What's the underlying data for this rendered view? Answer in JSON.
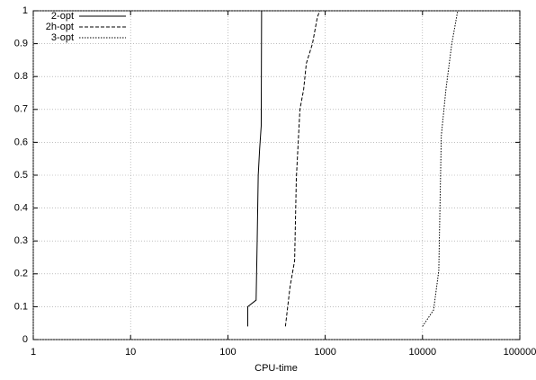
{
  "chart_data": {
    "type": "line",
    "x_label": "CPU-time",
    "xscale": "log",
    "grid": true,
    "legend": "upper-left",
    "xlim": [
      1,
      100000
    ],
    "xticks": [
      1,
      10,
      100,
      1000,
      10000,
      100000
    ],
    "ylim": [
      0,
      1
    ],
    "yticks": [
      0,
      0.1,
      0.2,
      0.3,
      0.4,
      0.5,
      0.6,
      0.7,
      0.8,
      0.9,
      1
    ],
    "series": [
      {
        "name": "2-opt",
        "color": "#000000",
        "dash": "solid",
        "x": [
          160,
          160,
          195,
          200,
          205,
          212,
          220,
          222
        ],
        "values": [
          0.04,
          0.1,
          0.12,
          0.3,
          0.5,
          0.58,
          0.65,
          1
        ]
      },
      {
        "name": "2h-opt",
        "color": "#000000",
        "dash": "dashed",
        "x": [
          390,
          435,
          485,
          505,
          550,
          600,
          640,
          740,
          830,
          880
        ],
        "values": [
          0.04,
          0.16,
          0.24,
          0.49,
          0.7,
          0.76,
          0.84,
          0.9,
          0.98,
          1
        ]
      },
      {
        "name": "3-opt",
        "color": "#000000",
        "dash": "dotted",
        "x": [
          10000,
          13000,
          14700,
          15600,
          17400,
          20000,
          23000
        ],
        "values": [
          0.04,
          0.09,
          0.21,
          0.62,
          0.76,
          0.9,
          1
        ]
      }
    ]
  }
}
